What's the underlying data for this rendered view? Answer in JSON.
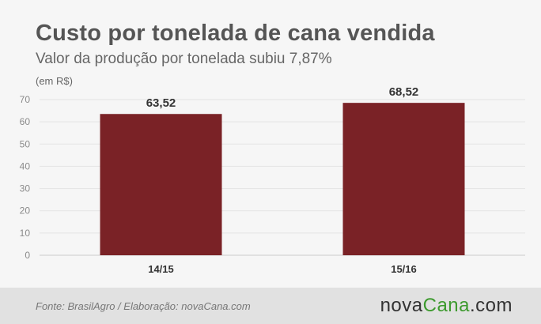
{
  "header": {
    "title": "Custo por tonelada de cana vendida",
    "subtitle": "Valor da produção por tonelada subiu 7,87%",
    "unit_note": "(em R$)"
  },
  "chart_data": {
    "type": "bar",
    "categories": [
      "14/15",
      "15/16"
    ],
    "values": [
      63.52,
      68.52
    ],
    "value_labels": [
      "63,52",
      "68,52"
    ],
    "yticks": [
      0,
      10,
      20,
      30,
      40,
      50,
      60,
      70
    ],
    "ylim": [
      0,
      70
    ],
    "grid": true,
    "bar_color": "#7a2226"
  },
  "footer": {
    "source": "Fonte: BrasilAgro / Elaboração: novaCana.com",
    "brand_part1": "nova",
    "brand_part2": "Cana",
    "brand_part3": ".com",
    "brand_green": "#3d9a2e"
  }
}
